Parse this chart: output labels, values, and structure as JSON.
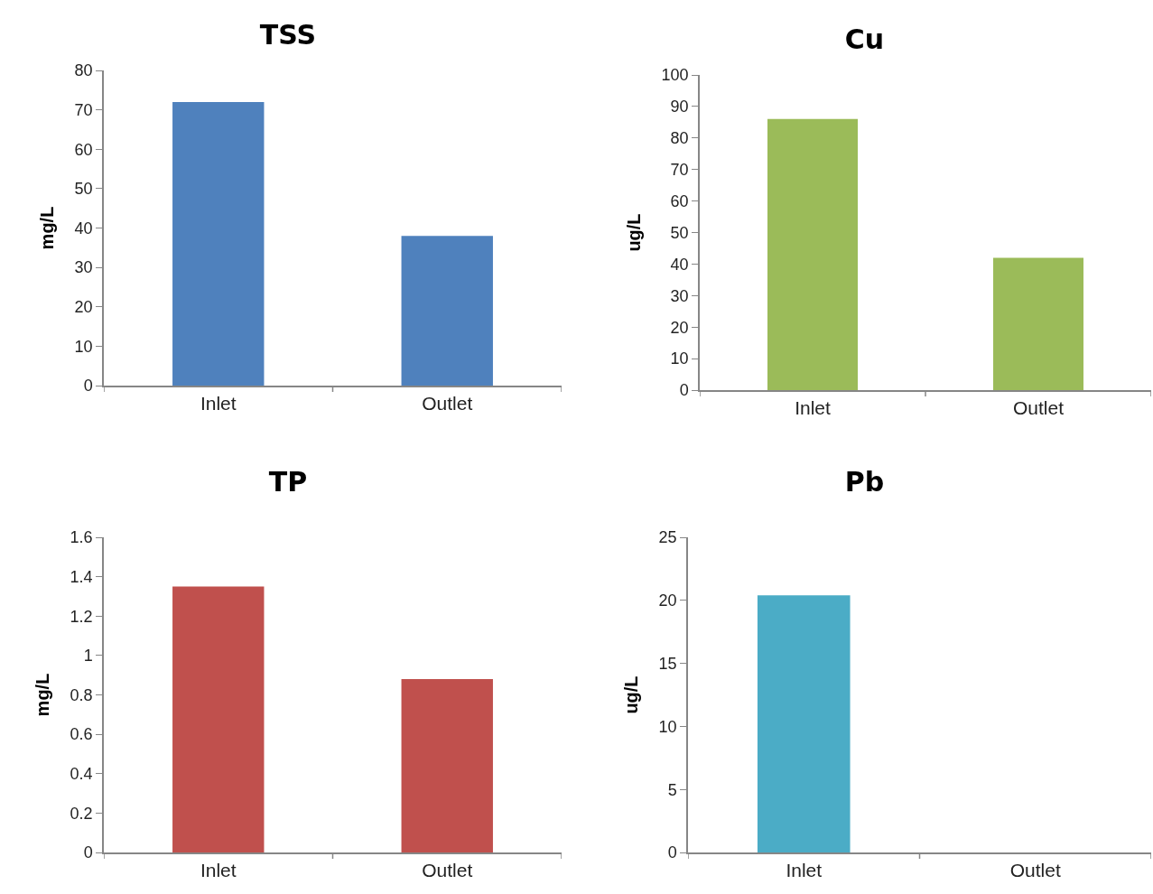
{
  "chart_data": [
    {
      "type": "bar",
      "title": "TSS",
      "ylabel": "mg/L",
      "categories": [
        "Inlet",
        "Outlet"
      ],
      "values": [
        72,
        38
      ],
      "color": "#4f81bd",
      "ylim": [
        0,
        80
      ],
      "yticks": [
        0,
        10,
        20,
        30,
        40,
        50,
        60,
        70,
        80
      ],
      "grid": false,
      "legend": false
    },
    {
      "type": "bar",
      "title": "Cu",
      "ylabel": "ug/L",
      "categories": [
        "Inlet",
        "Outlet"
      ],
      "values": [
        86,
        42
      ],
      "color": "#9bbb59",
      "ylim": [
        0,
        100
      ],
      "yticks": [
        0,
        10,
        20,
        30,
        40,
        50,
        60,
        70,
        80,
        90,
        100
      ],
      "grid": false,
      "legend": false
    },
    {
      "type": "bar",
      "title": "TP",
      "ylabel": "mg/L",
      "categories": [
        "Inlet",
        "Outlet"
      ],
      "values": [
        1.35,
        0.88
      ],
      "color": "#c0504d",
      "ylim": [
        0,
        1.6
      ],
      "yticks": [
        0,
        {
          "value": 0.2,
          "label": "0.2"
        },
        {
          "value": 0.4,
          "label": "0.4"
        },
        {
          "value": 0.6,
          "label": "0.6"
        },
        {
          "value": 0.8,
          "label": "0.8"
        },
        1,
        {
          "value": 1.2,
          "label": "1.2"
        },
        {
          "value": 1.4,
          "label": "1.4"
        },
        {
          "value": 1.6,
          "label": "1.6"
        }
      ],
      "grid": false,
      "legend": false
    },
    {
      "type": "bar",
      "title": "Pb",
      "ylabel": "ug/L",
      "categories": [
        "Inlet",
        "Outlet"
      ],
      "values": [
        20.4,
        0
      ],
      "color": "#4bacc6",
      "ylim": [
        0,
        25
      ],
      "yticks": [
        0,
        5,
        10,
        15,
        20,
        25
      ],
      "grid": false,
      "legend": false
    }
  ]
}
